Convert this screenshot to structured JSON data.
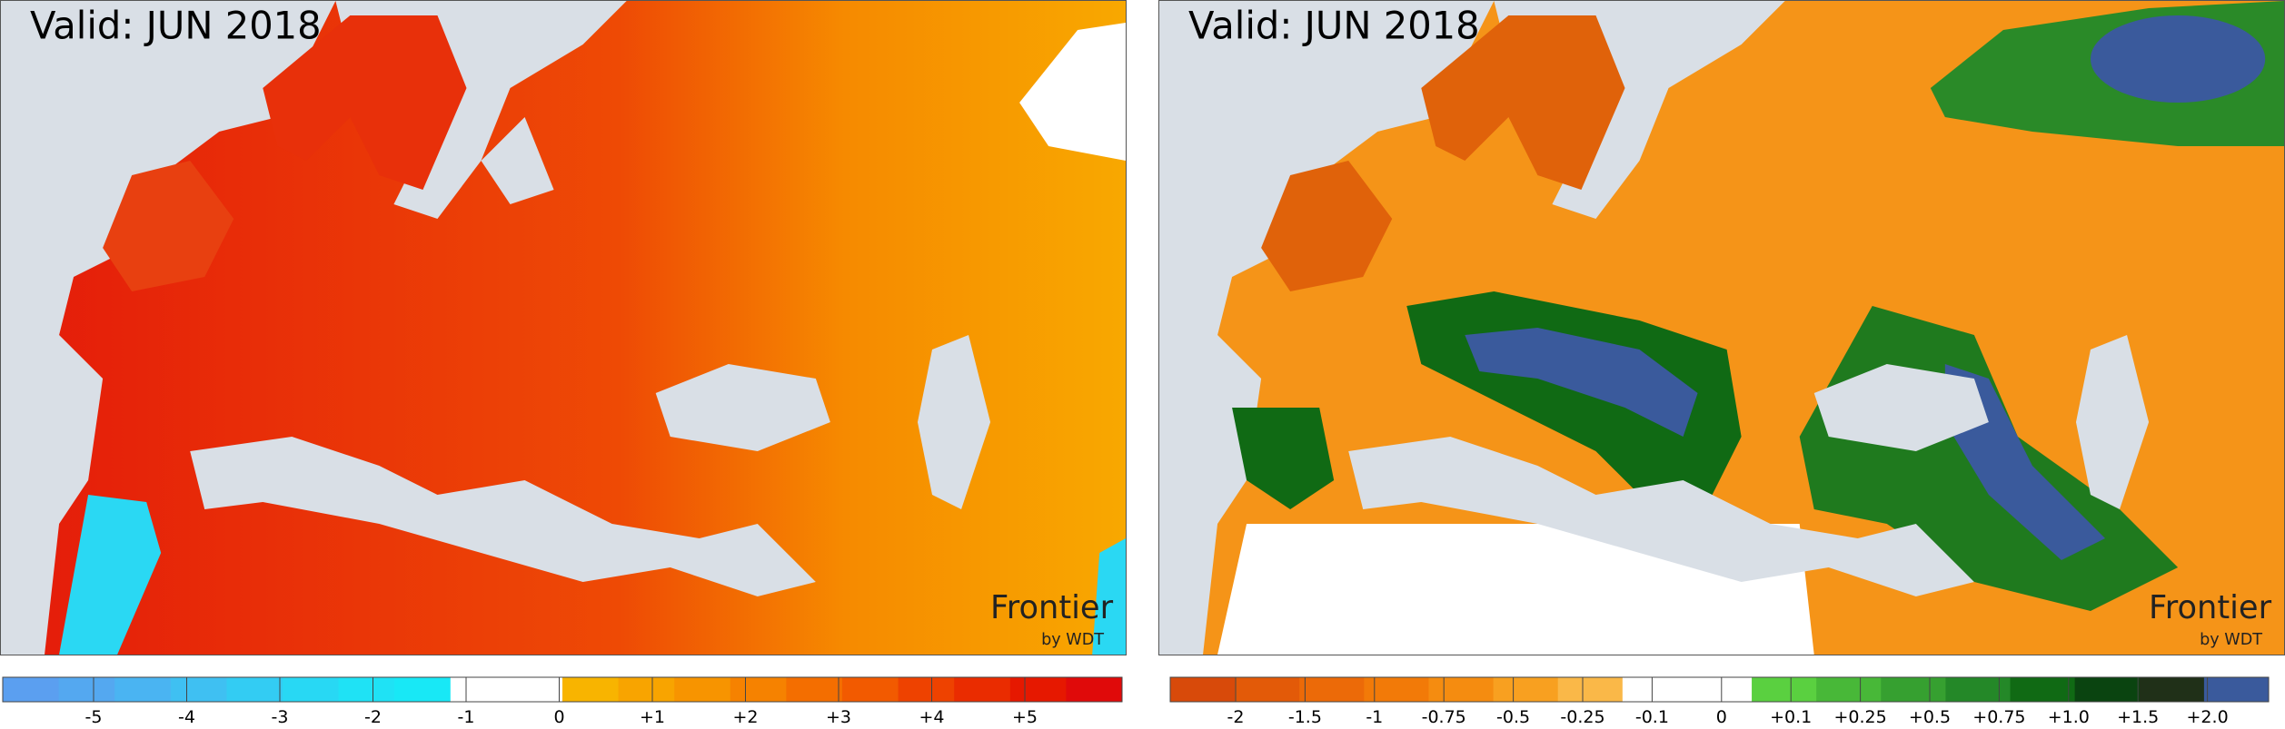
{
  "panels": [
    {
      "title": "Valid: JUN 2018",
      "logo": "Frontier",
      "logo_sub": "by WDT",
      "legend": {
        "labels": [
          "-5",
          "-4",
          "-3",
          "-2",
          "-1",
          "0",
          "+1",
          "+2",
          "+3",
          "+4",
          "+5"
        ],
        "colors": [
          "#5b9ff0",
          "#54a8f0",
          "#4ab4f2",
          "#3fc0f2",
          "#33ccf3",
          "#28d8f4",
          "#1fe2f5",
          "#18e8f6",
          "#ffffff",
          "#ffffff",
          "#f8b400",
          "#f8a400",
          "#f79400",
          "#f68200",
          "#f46e00",
          "#f25a00",
          "#ee4200",
          "#ea2c00",
          "#e61800",
          "#e00a0a"
        ]
      }
    },
    {
      "title": "Valid: JUN 2018",
      "logo": "Frontier",
      "logo_sub": "by WDT",
      "legend": {
        "labels": [
          "-2",
          "-1.5",
          "-1",
          "-0.75",
          "-0.5",
          "-0.25",
          "-0.1",
          "0",
          "+0.1",
          "+0.25",
          "+0.5",
          "+0.75",
          "+1.0",
          "+1.5",
          "+2.0"
        ],
        "colors": [
          "#d84a0a",
          "#e35a08",
          "#ec6a08",
          "#f27a08",
          "#f58c10",
          "#f8a020",
          "#fab848",
          "#ffffff",
          "#ffffff",
          "#5ad040",
          "#48b838",
          "#36a030",
          "#248828",
          "#106a14",
          "#0a4410",
          "#203018",
          "#3a5a9c"
        ]
      }
    }
  ]
}
